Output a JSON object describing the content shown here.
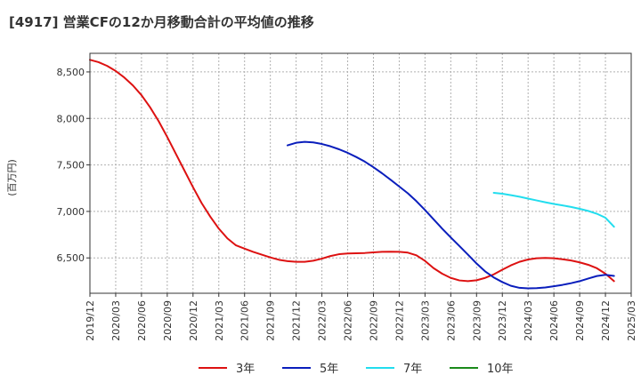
{
  "chart_data": {
    "type": "line",
    "title": "[4917]  営業CFの12か月移動合計の平均値の推移",
    "ylabel": "(百万円)",
    "ylim": [
      6120,
      8700
    ],
    "yticks": [
      6500,
      7000,
      7500,
      8000,
      8500
    ],
    "ytick_labels": [
      "6,500",
      "7,000",
      "7,500",
      "8,000",
      "8,500"
    ],
    "x_ticks": [
      "2019/12",
      "2020/03",
      "2020/06",
      "2020/09",
      "2020/12",
      "2021/03",
      "2021/06",
      "2021/09",
      "2021/12",
      "2022/03",
      "2022/06",
      "2022/09",
      "2022/12",
      "2023/03",
      "2023/06",
      "2023/09",
      "2023/12",
      "2024/03",
      "2024/06",
      "2024/09",
      "2024/12",
      "2025/03"
    ],
    "grid": true,
    "legend_position": "bottom",
    "series": [
      {
        "name": "3年",
        "color": "#dd1111",
        "start_index": 0,
        "values": [
          8630,
          8605,
          8565,
          8510,
          8440,
          8355,
          8250,
          8120,
          7970,
          7800,
          7620,
          7440,
          7260,
          7090,
          6945,
          6815,
          6710,
          6635,
          6600,
          6565,
          6535,
          6505,
          6480,
          6465,
          6458,
          6458,
          6470,
          6492,
          6520,
          6540,
          6548,
          6550,
          6553,
          6560,
          6565,
          6567,
          6566,
          6557,
          6528,
          6468,
          6390,
          6330,
          6285,
          6258,
          6250,
          6260,
          6285,
          6323,
          6373,
          6420,
          6458,
          6483,
          6496,
          6500,
          6496,
          6486,
          6472,
          6452,
          6426,
          6389,
          6330,
          6250
        ]
      },
      {
        "name": "5年",
        "color": "#0a1ebc",
        "start_index": 23,
        "values": [
          7710,
          7738,
          7748,
          7742,
          7725,
          7700,
          7668,
          7630,
          7585,
          7535,
          7475,
          7410,
          7340,
          7268,
          7195,
          7110,
          7015,
          6915,
          6815,
          6720,
          6628,
          6535,
          6440,
          6355,
          6290,
          6240,
          6200,
          6178,
          6172,
          6175,
          6182,
          6195,
          6210,
          6228,
          6250,
          6278,
          6305,
          6318,
          6306
        ]
      },
      {
        "name": "7年",
        "color": "#22ddee",
        "start_index": 47,
        "values": [
          7200,
          7190,
          7175,
          7158,
          7138,
          7118,
          7098,
          7080,
          7065,
          7048,
          7028,
          7005,
          6975,
          6932,
          6835
        ]
      },
      {
        "name": "10年",
        "color": "#1a8a1a",
        "start_index": 0,
        "values": []
      }
    ]
  }
}
